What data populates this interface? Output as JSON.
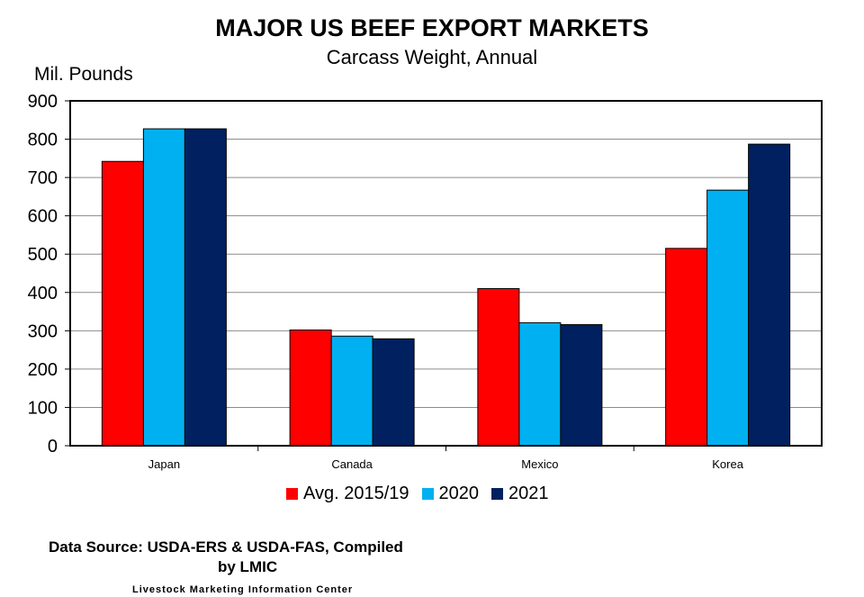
{
  "chart_data": {
    "type": "bar",
    "title": "MAJOR US BEEF EXPORT MARKETS",
    "subtitle": "Carcass Weight, Annual",
    "ylabel": "Mil. Pounds",
    "xlabel": "",
    "categories": [
      "Japan",
      "Canada",
      "Mexico",
      "Korea"
    ],
    "series": [
      {
        "name": "Avg. 2015/19",
        "color": "#ff0000",
        "values": [
          742,
          302,
          410,
          515
        ]
      },
      {
        "name": "2020",
        "color": "#00b0f0",
        "values": [
          827,
          286,
          321,
          667
        ]
      },
      {
        "name": "2021",
        "color": "#002060",
        "values": [
          827,
          279,
          316,
          787
        ]
      }
    ],
    "ylim": [
      0,
      900
    ],
    "yticks": [
      0,
      100,
      200,
      300,
      400,
      500,
      600,
      700,
      800,
      900
    ],
    "grid": true,
    "legend_position": "bottom"
  },
  "footer": {
    "source_line1": "Data Source:  USDA-ERS & USDA-FAS, Compiled",
    "source_line2": "by LMIC",
    "organization": "Livestock Marketing Information Center"
  }
}
